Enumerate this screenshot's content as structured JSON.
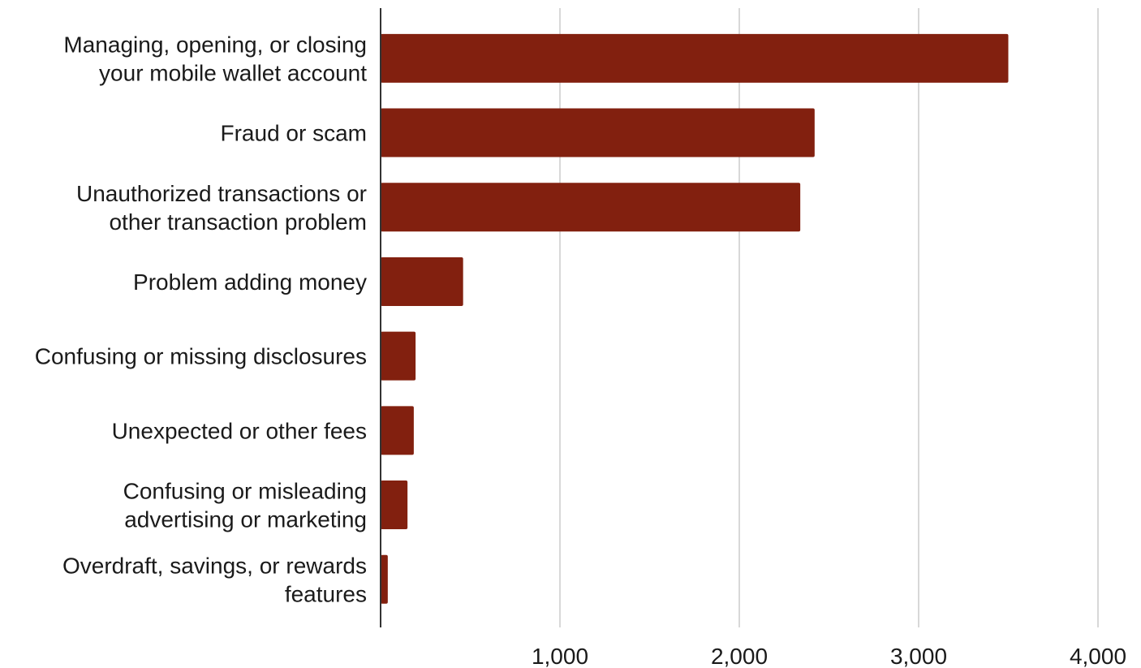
{
  "chart_data": {
    "type": "bar",
    "orientation": "horizontal",
    "categories": [
      [
        "Managing, opening, or closing",
        "your mobile wallet account"
      ],
      [
        "Fraud or scam"
      ],
      [
        "Unauthorized transactions or",
        "other transaction problem"
      ],
      [
        "Problem adding money"
      ],
      [
        "Confusing or missing disclosures"
      ],
      [
        "Unexpected or other fees"
      ],
      [
        "Confusing or misleading",
        "advertising or marketing"
      ],
      [
        "Overdraft, savings, or rewards",
        "features"
      ]
    ],
    "values": [
      3500,
      2420,
      2340,
      460,
      195,
      185,
      150,
      40
    ],
    "xlim": [
      0,
      4000
    ],
    "xticks": [
      1000,
      2000,
      3000,
      4000
    ],
    "xtick_labels": [
      "1,000",
      "2,000",
      "3,000",
      "4,000"
    ],
    "title": "",
    "xlabel": "",
    "ylabel": "",
    "grid": "vertical",
    "legend": "none",
    "bar_color": "#82200f"
  }
}
